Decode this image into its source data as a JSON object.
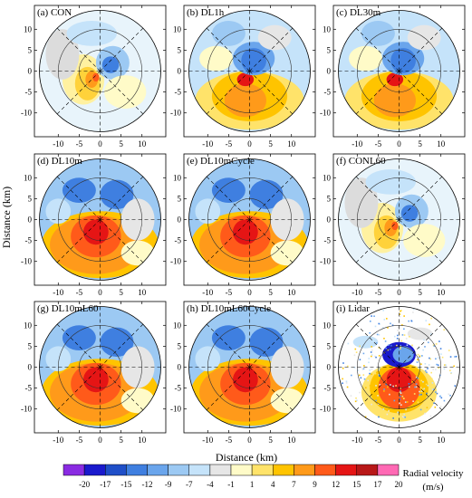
{
  "figure": {
    "y_axis_label": "Distance (km)",
    "x_axis_label": "Distance (km)",
    "tick_labels": [
      "-10",
      "-5",
      "0",
      "5",
      "10"
    ],
    "panels": [
      {
        "label": "(a) CON",
        "pattern": "weak"
      },
      {
        "label": "(b) DL1h",
        "pattern": "medium"
      },
      {
        "label": "(c) DL30m",
        "pattern": "medium"
      },
      {
        "label": "(d) DL10m",
        "pattern": "strong"
      },
      {
        "label": "(e) DL10mCycle",
        "pattern": "strong"
      },
      {
        "label": "(f) CONL60",
        "pattern": "weak"
      },
      {
        "label": "(g) DL10mL60",
        "pattern": "strong"
      },
      {
        "label": "(h) DL10mL60Cycle",
        "pattern": "strong"
      },
      {
        "label": "(i) Lidar",
        "pattern": "lidar"
      }
    ]
  },
  "colorbar": {
    "title_line1": "Radial velocity",
    "title_line2": "(m/s)",
    "colors": [
      "#8a2be2",
      "#1a1acd",
      "#1f4fc8",
      "#3f7fe0",
      "#6aa5ec",
      "#9cc9f3",
      "#c5e3fa",
      "#e6e6e6",
      "#fffbc8",
      "#ffe36a",
      "#ffc400",
      "#ff9a1a",
      "#ff5a1a",
      "#e51515",
      "#b81818",
      "#ff69b4"
    ],
    "tick_labels": [
      "-20",
      "-17",
      "-15",
      "-12",
      "-9",
      "-7",
      "-4",
      "-1",
      "1",
      "4",
      "7",
      "9",
      "12",
      "15",
      "17",
      "20"
    ]
  }
}
